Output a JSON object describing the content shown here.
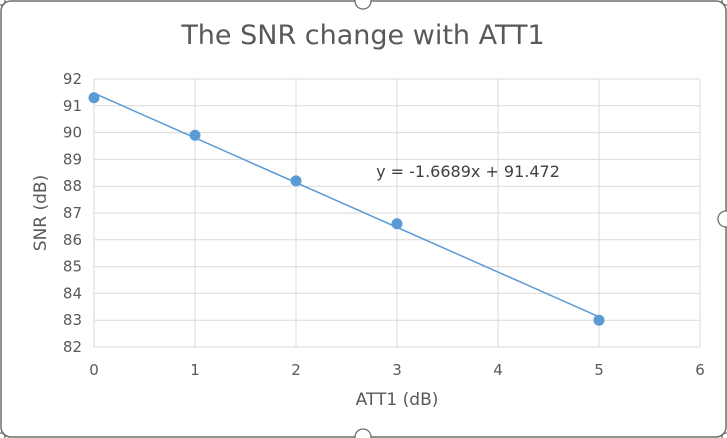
{
  "chart_data": {
    "type": "scatter",
    "title": "The SNR change with ATT1",
    "xlabel": "ATT1 (dB)",
    "ylabel": "SNR (dB)",
    "xlim": [
      0,
      6
    ],
    "ylim": [
      82,
      92
    ],
    "x_ticks": [
      "0",
      "1",
      "2",
      "3",
      "4",
      "5",
      "6"
    ],
    "y_ticks": [
      "82",
      "83",
      "84",
      "85",
      "86",
      "87",
      "88",
      "89",
      "90",
      "91",
      "92"
    ],
    "grid": true,
    "series": [
      {
        "points": [
          {
            "x": 0,
            "y": 91.3
          },
          {
            "x": 1,
            "y": 89.9
          },
          {
            "x": 2,
            "y": 88.2
          },
          {
            "x": 3,
            "y": 86.6
          },
          {
            "x": 5,
            "y": 83.0
          }
        ],
        "color": "#5b9bd5"
      }
    ],
    "trendline": {
      "slope": -1.6689,
      "intercept": 91.472,
      "x_range": [
        0,
        5
      ],
      "equation": "y = -1.6689x + 91.472",
      "color": "#5b9bd5"
    }
  }
}
